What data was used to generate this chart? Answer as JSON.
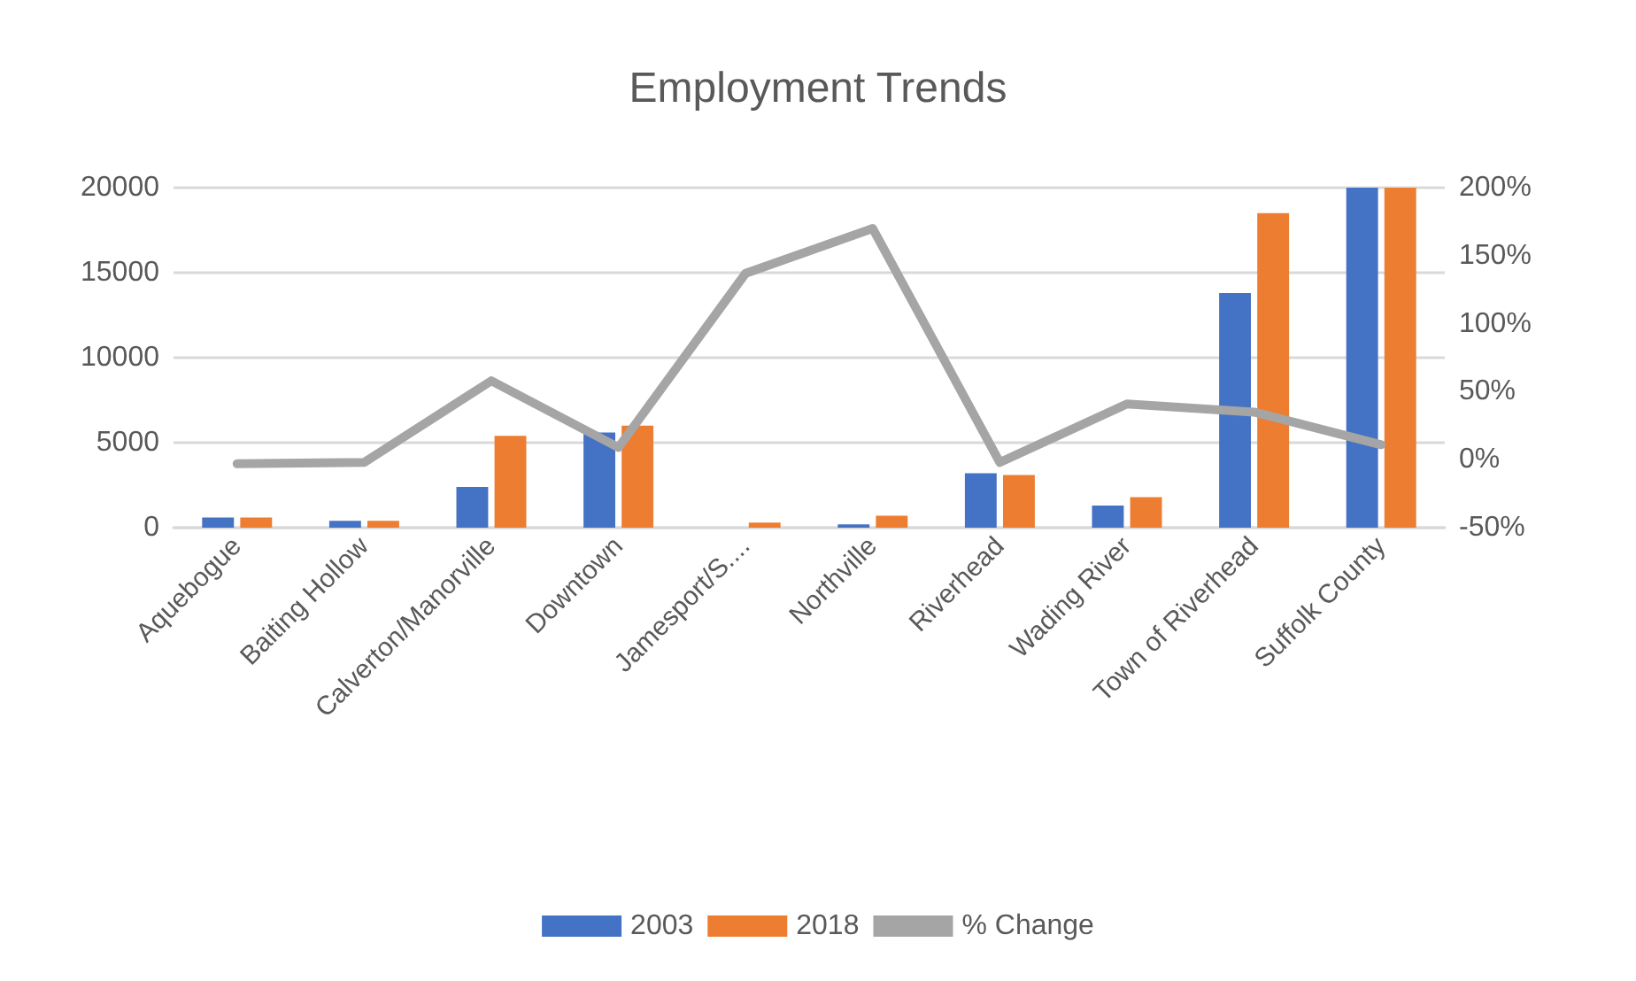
{
  "chart_data": {
    "type": "bar",
    "title": "Employment Trends",
    "categories": [
      "Aquebogue",
      "Baiting Hollow",
      "Calverton/Manorville",
      "Downtown",
      "Jamesport/S....",
      "Northville",
      "Riverhead",
      "Wading River",
      "Town of Riverhead",
      "Suffolk County"
    ],
    "series": [
      {
        "name": "2003",
        "color": "#4472c4",
        "values": [
          600,
          400,
          2400,
          5600,
          0,
          200,
          3200,
          1300,
          13800,
          20000
        ]
      },
      {
        "name": "2018",
        "color": "#ed7d31",
        "values": [
          600,
          400,
          5400,
          6000,
          300,
          700,
          3100,
          1800,
          18500,
          20000
        ]
      },
      {
        "name": "% Change",
        "type": "line",
        "axis": "y2",
        "color": "#a5a5a5",
        "values": [
          -3,
          -2,
          58,
          9,
          137,
          170,
          -2,
          41,
          35,
          11
        ]
      }
    ],
    "ylim": [
      0,
      20000
    ],
    "yticks": [
      0,
      5000,
      10000,
      15000,
      20000
    ],
    "y2lim": [
      -50,
      200
    ],
    "y2ticks": [
      {
        "value": -50,
        "label": "-50%"
      },
      {
        "value": 0,
        "label": "0%"
      },
      {
        "value": 50,
        "label": "50%"
      },
      {
        "value": 100,
        "label": "100%"
      },
      {
        "value": 150,
        "label": "150%"
      },
      {
        "value": 200,
        "label": "200%"
      }
    ],
    "grid": "y",
    "legend": "bottom",
    "marker": "none"
  }
}
